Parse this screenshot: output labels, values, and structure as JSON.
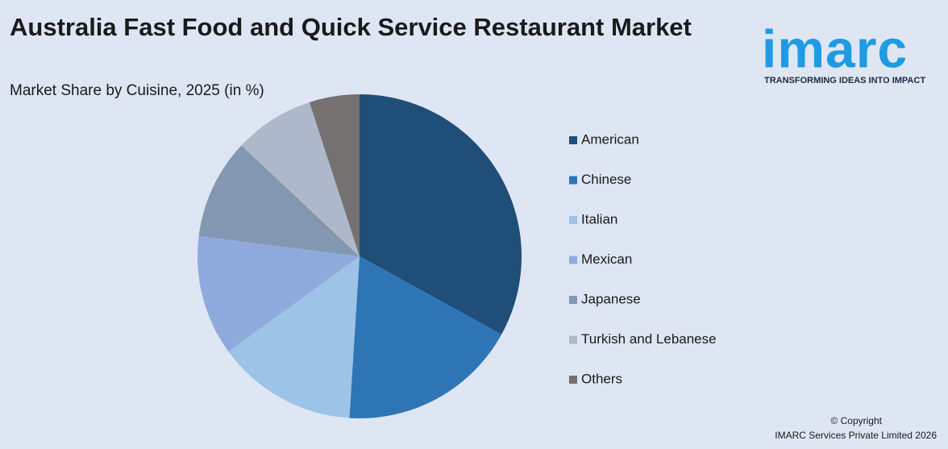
{
  "chart_data": {
    "type": "pie",
    "title": "Australia Fast Food and Quick Service Restaurant Market",
    "subtitle": "Market Share by Cuisine, 2025 (in %)",
    "categories": [
      "American",
      "Chinese",
      "Italian",
      "Mexican",
      "Japanese",
      "Turkish and Lebanese",
      "Others"
    ],
    "values": [
      33,
      18,
      14,
      12,
      10,
      8,
      5
    ],
    "colors": [
      "#1f4e79",
      "#2e75b6",
      "#9dc3e6",
      "#8faadc",
      "#8497b0",
      "#adb9ca",
      "#767171"
    ],
    "legend": "right"
  },
  "logo": {
    "name": "imarc",
    "tagline": "TRANSFORMING IDEAS INTO IMPACT"
  },
  "footer": {
    "copyright": "© Copyright",
    "company": "IMARC Services Private Limited 2026"
  }
}
